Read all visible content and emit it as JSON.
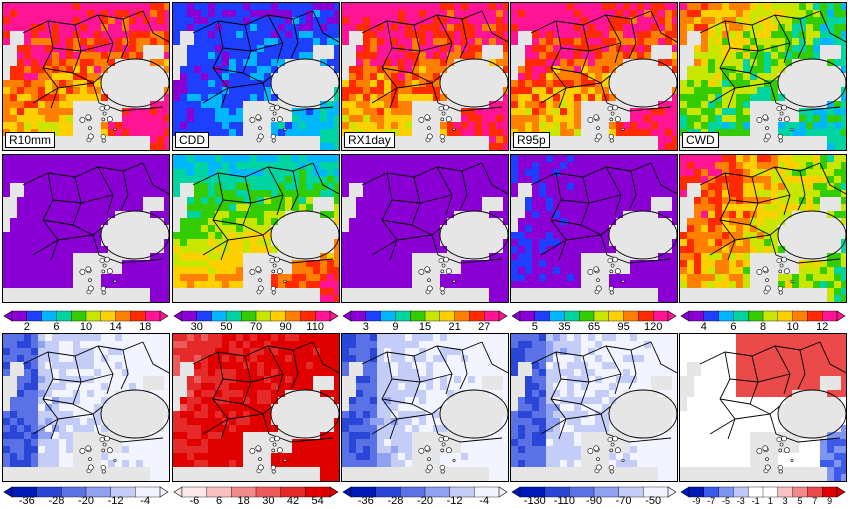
{
  "panel_labels": [
    "R10mm",
    "CDD",
    "RX1day",
    "R95p",
    "CWD"
  ],
  "rows": [
    {
      "row": "absolute",
      "fields": [
        "wet-hi",
        "dry",
        "wet-hi",
        "wet-hi",
        "cwd"
      ]
    },
    {
      "row": "absolute-2",
      "fields": [
        "low-purple",
        "cdd2",
        "low-purple",
        "low-blue",
        "cwd2"
      ]
    },
    {
      "row": "change",
      "fields": [
        "neg",
        "pos",
        "neg",
        "neg",
        "mixed"
      ]
    }
  ],
  "colorbars": [
    {
      "name": "R10mm",
      "ticks": [
        "2",
        "6",
        "10",
        "14",
        "18"
      ],
      "scheme": "rainbow"
    },
    {
      "name": "CDD",
      "ticks": [
        "30",
        "50",
        "70",
        "90",
        "110"
      ],
      "scheme": "rainbow"
    },
    {
      "name": "RX1day",
      "ticks": [
        "3",
        "9",
        "15",
        "21",
        "27"
      ],
      "scheme": "rainbow"
    },
    {
      "name": "R95p",
      "ticks": [
        "5",
        "35",
        "65",
        "95",
        "120"
      ],
      "scheme": "rainbow"
    },
    {
      "name": "CWD",
      "ticks": [
        "4",
        "6",
        "8",
        "10",
        "12"
      ],
      "scheme": "rainbow"
    }
  ],
  "change_colorbars": [
    {
      "name": "R10mm-change",
      "ticks": [
        "-36",
        "-28",
        "-20",
        "-12",
        "-4"
      ],
      "scheme": "blues"
    },
    {
      "name": "CDD-change",
      "ticks": [
        "-6",
        "6",
        "18",
        "30",
        "42",
        "54"
      ],
      "scheme": "reds"
    },
    {
      "name": "RX1day-change",
      "ticks": [
        "-36",
        "-28",
        "-20",
        "-12",
        "-4"
      ],
      "scheme": "blues"
    },
    {
      "name": "R95p-change",
      "ticks": [
        "-130",
        "-110",
        "-90",
        "-70",
        "-50"
      ],
      "scheme": "blues"
    },
    {
      "name": "CWD-change",
      "ticks": [
        "-9",
        "-7",
        "-5",
        "-3",
        "-1",
        "1",
        "3",
        "5",
        "7",
        "9"
      ],
      "scheme": "diverging"
    }
  ],
  "colors": {
    "land_mask": "#e6e6e6",
    "border": "#000000",
    "rainbow": [
      "#8a00d4",
      "#1f3fff",
      "#00b7ff",
      "#00d4a0",
      "#33cc00",
      "#c8e600",
      "#ffd000",
      "#ff8000",
      "#ff2a00",
      "#ff1493"
    ],
    "blues": [
      "#0019b8",
      "#2a46d6",
      "#5a72e6",
      "#8fa1f0",
      "#c3cdf8",
      "#f2f4ff"
    ],
    "reds": [
      "#fde9e9",
      "#f8bfbf",
      "#f28a8a",
      "#ec5a5a",
      "#e52a2a",
      "#e00000"
    ],
    "diverging": [
      "#0019b8",
      "#3c5bea",
      "#7f95f2",
      "#bfc9f9",
      "#ffffff",
      "#ffffff",
      "#f9c2c2",
      "#f28a8a",
      "#ea4a4a",
      "#e00000"
    ]
  }
}
